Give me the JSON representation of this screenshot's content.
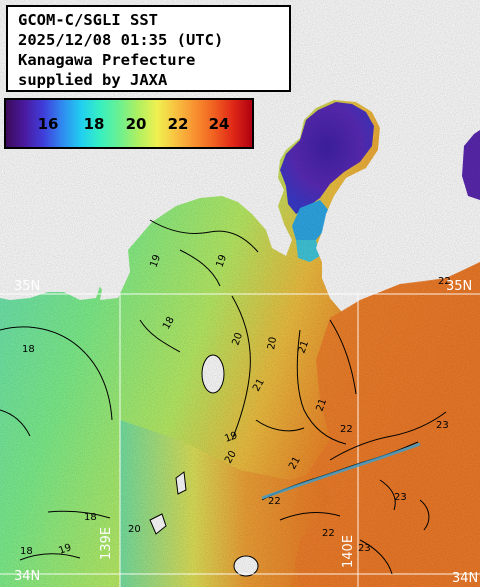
{
  "title": {
    "lines": [
      "GCOM-C/SGLI SST",
      "2025/12/08 01:35 (UTC)",
      "Kanagawa Prefecture",
      "supplied by JAXA"
    ]
  },
  "colors": {
    "land": "#ffffff",
    "contour": "#000000",
    "grid": "#ffffff",
    "scale_gradient": [
      "#3b0a5a",
      "#4a1aa0",
      "#3f3fdc",
      "#2f8cf0",
      "#21d0f0",
      "#38f0c0",
      "#6cf090",
      "#b0f060",
      "#f0f050",
      "#f8c040",
      "#f89030",
      "#f06020",
      "#e02818",
      "#b00010"
    ]
  },
  "color_scale": {
    "labels": [
      "16",
      "18",
      "20",
      "22",
      "24"
    ]
  },
  "contour_labels": [
    "19",
    "19",
    "18",
    "18",
    "19",
    "20",
    "20",
    "21",
    "21",
    "21",
    "22",
    "22",
    "22",
    "22",
    "23",
    "23",
    "23",
    "20",
    "19",
    "18",
    "18",
    "20",
    "21"
  ],
  "grid_labels": {
    "lat_35n_left": "35N",
    "lat_35n_right": "35N",
    "lat_34n_left": "34N",
    "lat_34n_right": "34N",
    "lon_139e": "139E",
    "lon_140e": "140E"
  },
  "icons": [
    "contour-line-icon"
  ]
}
